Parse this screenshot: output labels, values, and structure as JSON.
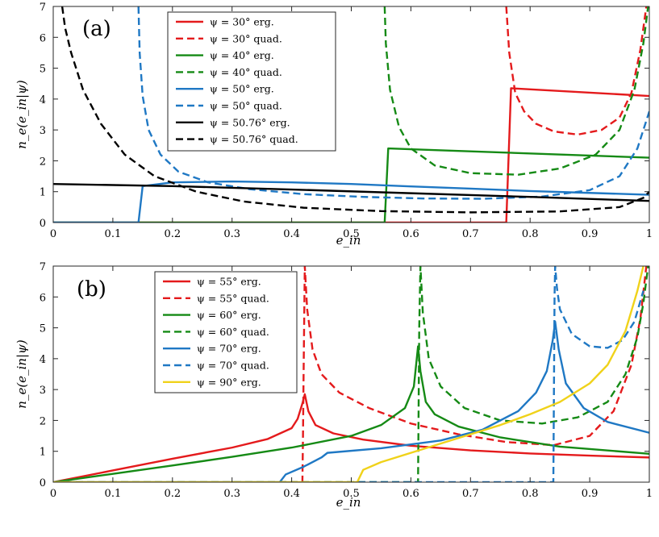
{
  "colors": {
    "red": "#e41a1c",
    "green": "#158a15",
    "blue": "#1f78c4",
    "black": "#000000",
    "yellow": "#f0d21a"
  },
  "chart_data": [
    {
      "type": "line",
      "panel_label": "(a)",
      "xlabel": "e_in",
      "ylabel": "n_e(e_in|ψ)",
      "xlim": [
        0,
        1
      ],
      "ylim": [
        0,
        7
      ],
      "xticks": [
        "0",
        "0.1",
        "0.2",
        "0.3",
        "0.4",
        "0.5",
        "0.6",
        "0.7",
        "0.8",
        "0.9",
        "1"
      ],
      "yticks": [
        "0",
        "1",
        "2",
        "3",
        "4",
        "5",
        "6",
        "7"
      ],
      "grid": false,
      "legend_position": "top-center",
      "series": [
        {
          "name": "ψ = 30° erg.",
          "color": "red",
          "dash": false,
          "x": [
            0,
            0.76,
            0.768,
            1.0
          ],
          "y": [
            0,
            0,
            4.35,
            4.1
          ]
        },
        {
          "name": "ψ = 30° quad.",
          "color": "red",
          "dash": true,
          "x": [
            0.76,
            0.765,
            0.775,
            0.79,
            0.81,
            0.84,
            0.88,
            0.92,
            0.95,
            0.97,
            0.985,
            0.995
          ],
          "y": [
            7.0,
            5.5,
            4.2,
            3.6,
            3.2,
            2.95,
            2.85,
            3.0,
            3.4,
            4.2,
            5.6,
            7.0
          ]
        },
        {
          "name": "ψ = 40° erg.",
          "color": "green",
          "dash": false,
          "x": [
            0,
            0.556,
            0.562,
            1.0
          ],
          "y": [
            0,
            0,
            2.4,
            2.1
          ]
        },
        {
          "name": "ψ = 40° quad.",
          "color": "green",
          "dash": true,
          "x": [
            0.556,
            0.558,
            0.565,
            0.58,
            0.6,
            0.64,
            0.7,
            0.78,
            0.85,
            0.91,
            0.95,
            0.975,
            0.99,
            0.998
          ],
          "y": [
            7.0,
            5.8,
            4.3,
            3.1,
            2.4,
            1.85,
            1.6,
            1.55,
            1.75,
            2.2,
            3.0,
            4.3,
            5.8,
            7.0
          ]
        },
        {
          "name": "ψ = 50° erg.",
          "color": "blue",
          "dash": false,
          "x": [
            0,
            0.143,
            0.15,
            0.2,
            0.3,
            0.4,
            0.5,
            0.6,
            0.7,
            0.8,
            0.9,
            1.0
          ],
          "y": [
            0,
            0,
            1.18,
            1.3,
            1.33,
            1.3,
            1.25,
            1.17,
            1.1,
            1.02,
            0.96,
            0.9
          ]
        },
        {
          "name": "ψ = 50° quad.",
          "color": "blue",
          "dash": true,
          "x": [
            0.143,
            0.145,
            0.15,
            0.16,
            0.18,
            0.21,
            0.26,
            0.33,
            0.42,
            0.52,
            0.62,
            0.72,
            0.82,
            0.9,
            0.95,
            0.98,
            1.0
          ],
          "y": [
            7.0,
            5.5,
            4.1,
            3.0,
            2.2,
            1.65,
            1.3,
            1.08,
            0.92,
            0.83,
            0.78,
            0.77,
            0.84,
            1.05,
            1.5,
            2.4,
            3.6
          ]
        },
        {
          "name": "ψ = 50.76° erg.",
          "color": "black",
          "dash": false,
          "x": [
            0,
            0.2,
            0.4,
            0.6,
            0.8,
            1.0
          ],
          "y": [
            1.25,
            1.18,
            1.07,
            0.95,
            0.83,
            0.7
          ]
        },
        {
          "name": "ψ = 50.76° quad.",
          "color": "black",
          "dash": true,
          "x": [
            0.015,
            0.02,
            0.03,
            0.05,
            0.08,
            0.12,
            0.17,
            0.24,
            0.32,
            0.42,
            0.55,
            0.7,
            0.85,
            0.95,
            0.99,
            1.0
          ],
          "y": [
            7.0,
            6.3,
            5.5,
            4.3,
            3.2,
            2.2,
            1.5,
            1.0,
            0.68,
            0.48,
            0.37,
            0.33,
            0.36,
            0.5,
            0.8,
            1.0
          ]
        }
      ]
    },
    {
      "type": "line",
      "panel_label": "(b)",
      "xlabel": "e_in",
      "ylabel": "n_e(e_in|ψ)",
      "xlim": [
        0,
        1
      ],
      "ylim": [
        0,
        7
      ],
      "xticks": [
        "0",
        "0.1",
        "0.2",
        "0.3",
        "0.4",
        "0.5",
        "0.6",
        "0.7",
        "0.8",
        "0.9",
        "1"
      ],
      "yticks": [
        "0",
        "1",
        "2",
        "3",
        "4",
        "5",
        "6",
        "7"
      ],
      "grid": false,
      "legend_position": "top-left",
      "series": [
        {
          "name": "ψ = 55° erg.",
          "color": "red",
          "dash": false,
          "x": [
            0,
            0.1,
            0.2,
            0.3,
            0.36,
            0.4,
            0.41,
            0.418,
            0.422,
            0.428,
            0.44,
            0.47,
            0.52,
            0.6,
            0.7,
            0.8,
            0.9,
            1.0
          ],
          "y": [
            0,
            0.38,
            0.76,
            1.12,
            1.4,
            1.75,
            2.05,
            2.55,
            2.85,
            2.3,
            1.85,
            1.58,
            1.38,
            1.18,
            1.03,
            0.93,
            0.86,
            0.8
          ]
        },
        {
          "name": "ψ = 55° quad.",
          "color": "red",
          "dash": true,
          "x": [
            0,
            0.418,
            0.419,
            0.42,
            0.422,
            0.426,
            0.435,
            0.45,
            0.48,
            0.53,
            0.6,
            0.68,
            0.76,
            0.84,
            0.9,
            0.94,
            0.97,
            0.985,
            0.995
          ],
          "y": [
            0,
            0,
            1.5,
            3.5,
            7.0,
            5.6,
            4.3,
            3.5,
            2.9,
            2.4,
            1.9,
            1.55,
            1.3,
            1.2,
            1.5,
            2.3,
            3.8,
            5.3,
            7.0
          ]
        },
        {
          "name": "ψ = 60° erg.",
          "color": "green",
          "dash": false,
          "x": [
            0,
            0.1,
            0.2,
            0.3,
            0.4,
            0.5,
            0.55,
            0.59,
            0.605,
            0.612,
            0.616,
            0.625,
            0.64,
            0.68,
            0.75,
            0.85,
            1.0
          ],
          "y": [
            0,
            0.27,
            0.54,
            0.82,
            1.12,
            1.5,
            1.85,
            2.4,
            3.1,
            4.4,
            3.6,
            2.6,
            2.2,
            1.8,
            1.45,
            1.15,
            0.92
          ]
        },
        {
          "name": "ψ = 60° quad.",
          "color": "green",
          "dash": true,
          "x": [
            0,
            0.612,
            0.613,
            0.614,
            0.616,
            0.62,
            0.63,
            0.65,
            0.69,
            0.75,
            0.82,
            0.88,
            0.93,
            0.96,
            0.98,
            0.99,
            0.998
          ],
          "y": [
            0,
            0,
            2.5,
            5.0,
            7.0,
            5.5,
            4.0,
            3.1,
            2.4,
            2.0,
            1.9,
            2.1,
            2.6,
            3.5,
            4.7,
            5.8,
            7.0
          ]
        },
        {
          "name": "ψ = 70° erg.",
          "color": "blue",
          "dash": false,
          "x": [
            0,
            0.38,
            0.39,
            0.42,
            0.45,
            0.46,
            0.55,
            0.65,
            0.72,
            0.78,
            0.81,
            0.828,
            0.838,
            0.842,
            0.848,
            0.86,
            0.89,
            0.93,
            1.0
          ],
          "y": [
            0,
            0,
            0.25,
            0.5,
            0.8,
            0.95,
            1.1,
            1.35,
            1.7,
            2.3,
            2.9,
            3.6,
            4.6,
            5.2,
            4.3,
            3.2,
            2.4,
            1.95,
            1.6
          ]
        },
        {
          "name": "ψ = 70° quad.",
          "color": "blue",
          "dash": true,
          "x": [
            0,
            0.839,
            0.84,
            0.841,
            0.842,
            0.845,
            0.85,
            0.87,
            0.9,
            0.93,
            0.955,
            0.975,
            0.99
          ],
          "y": [
            0,
            0,
            3.0,
            6.0,
            7.0,
            6.3,
            5.6,
            4.8,
            4.4,
            4.35,
            4.6,
            5.2,
            6.2
          ]
        },
        {
          "name": "ψ = 90° erg.",
          "color": "yellow",
          "dash": false,
          "x": [
            0,
            0.51,
            0.52,
            0.55,
            0.6,
            0.65,
            0.7,
            0.75,
            0.8,
            0.85,
            0.9,
            0.93,
            0.96,
            0.98,
            0.99
          ],
          "y": [
            0,
            0,
            0.4,
            0.65,
            0.95,
            1.25,
            1.55,
            1.85,
            2.2,
            2.6,
            3.2,
            3.8,
            4.9,
            6.2,
            7.0
          ]
        }
      ]
    }
  ]
}
